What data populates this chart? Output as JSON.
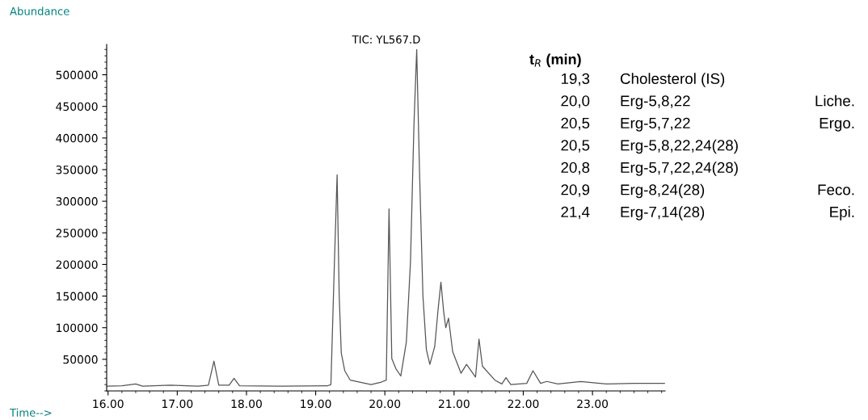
{
  "chart_data": {
    "type": "line",
    "title": "TIC: YL567.D",
    "ylabel": "Abundance",
    "xlabel": "Time-->",
    "x": [
      15.98,
      16.2,
      16.4,
      16.5,
      16.9,
      17.3,
      17.45,
      17.53,
      17.6,
      17.75,
      17.82,
      17.9,
      18.5,
      19.17,
      19.22,
      19.27,
      19.31,
      19.34,
      19.37,
      19.42,
      19.5,
      19.8,
      19.95,
      20.02,
      20.06,
      20.1,
      20.16,
      20.23,
      20.31,
      20.37,
      20.42,
      20.46,
      20.5,
      20.55,
      20.6,
      20.65,
      20.72,
      20.77,
      20.81,
      20.85,
      20.88,
      20.92,
      20.98,
      21.1,
      21.18,
      21.31,
      21.36,
      21.41,
      21.59,
      21.69,
      21.75,
      21.82,
      22.05,
      22.14,
      22.25,
      22.34,
      22.5,
      22.83,
      23.2,
      23.6,
      24.04
    ],
    "series": [
      {
        "color": "#555555",
        "values": [
          7500,
          8000,
          11000,
          7500,
          9000,
          7500,
          9000,
          47000,
          9000,
          9000,
          20000,
          8000,
          7500,
          8000,
          10000,
          200000,
          342000,
          150000,
          60000,
          32000,
          17000,
          10000,
          14000,
          17000,
          288000,
          51000,
          35000,
          23600,
          77000,
          204000,
          420000,
          540000,
          350000,
          150000,
          65000,
          42000,
          70000,
          130000,
          172000,
          125000,
          100000,
          115000,
          62000,
          28000,
          42000,
          22000,
          82000,
          39000,
          17000,
          11000,
          21000,
          10000,
          12000,
          32000,
          12000,
          15000,
          11000,
          15000,
          11000,
          12000,
          12000
        ]
      }
    ],
    "xlim": [
      15.98,
      24.05
    ],
    "ylim": [
      0,
      548000
    ],
    "xticks": [
      {
        "value": 16,
        "label": "16.00"
      },
      {
        "value": 17,
        "label": "17.00"
      },
      {
        "value": 18,
        "label": "18.00"
      },
      {
        "value": 19,
        "label": "19.00"
      },
      {
        "value": 20,
        "label": "20.00"
      },
      {
        "value": 21,
        "label": "21.00"
      },
      {
        "value": 22,
        "label": "22.00"
      },
      {
        "value": 23,
        "label": "23.00"
      }
    ],
    "yticks": [
      50000,
      100000,
      150000,
      200000,
      250000,
      300000,
      350000,
      400000,
      450000,
      500000
    ],
    "grid": false,
    "legend": false,
    "annotations": [
      "t$_{R}$ (min)",
      "19,3\tCholesterol (IS)",
      "20,0\tErg-5,8,22\tLiche.",
      "20,5\tErg-5,7,22\tErgo.",
      "20,5\tErg-5,8,22,24(28)",
      "20,8\tErg-5,7,22,24(28)",
      "20,9\tErg-8,24(28)\tFeco.",
      "21,4\tErg-7,14(28)\tEpi."
    ]
  }
}
